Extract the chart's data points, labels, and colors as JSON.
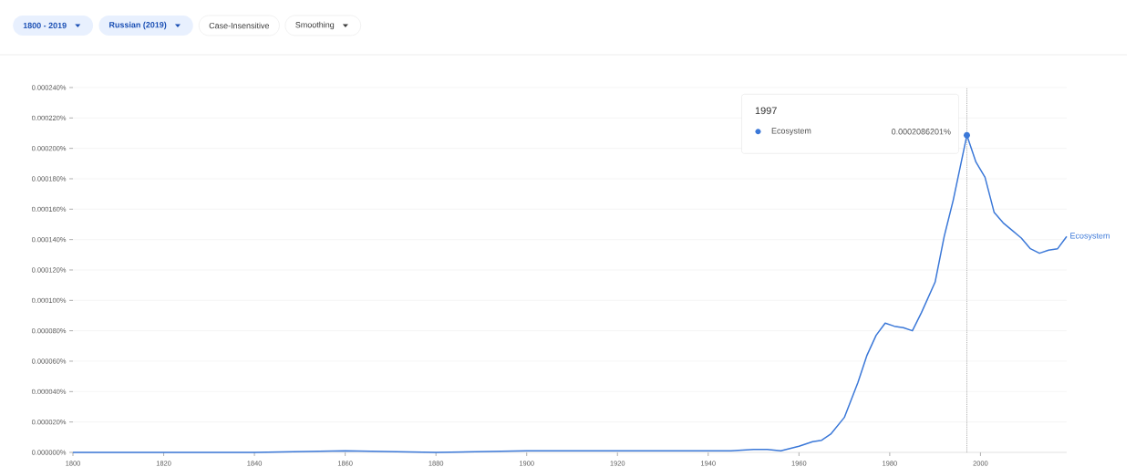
{
  "chart_data": {
    "type": "line",
    "x": [
      1800,
      1820,
      1840,
      1860,
      1880,
      1900,
      1920,
      1940,
      1945,
      1950,
      1953,
      1956,
      1960,
      1963,
      1965,
      1967,
      1970,
      1973,
      1975,
      1977,
      1979,
      1981,
      1983,
      1985,
      1987,
      1990,
      1992,
      1994,
      1997,
      1999,
      2001,
      2003,
      2005,
      2007,
      2009,
      2011,
      2013,
      2015,
      2017,
      2019
    ],
    "series": [
      {
        "name": "Ecosystem",
        "color": "#3b78d8",
        "values": [
          0,
          0,
          0,
          1e-06,
          0,
          1e-06,
          1e-06,
          1e-06,
          1e-06,
          2e-06,
          2e-06,
          1e-06,
          4e-06,
          7e-06,
          8e-06,
          1.2e-05,
          2.3e-05,
          4.6e-05,
          6.4e-05,
          7.7e-05,
          8.5e-05,
          8.3e-05,
          8.2e-05,
          8e-05,
          9.2e-05,
          0.000112,
          0.000142,
          0.000166,
          0.0002086201,
          0.000191,
          0.000181,
          0.000158,
          0.000151,
          0.000146,
          0.000141,
          0.000134,
          0.000131,
          0.000133,
          0.000134,
          0.000142
        ]
      }
    ],
    "xlim": [
      1800,
      2019
    ],
    "xticks": [
      1800,
      1820,
      1840,
      1860,
      1880,
      1900,
      1920,
      1940,
      1960,
      1980,
      2000
    ],
    "ylim": [
      0,
      0.00024
    ],
    "yticks": [
      {
        "value": 0,
        "label": "0.000000%"
      },
      {
        "value": 2e-05,
        "label": "0.000020%"
      },
      {
        "value": 4e-05,
        "label": "0.000040%"
      },
      {
        "value": 6e-05,
        "label": "0.000060%"
      },
      {
        "value": 8e-05,
        "label": "0.000080%"
      },
      {
        "value": 0.0001,
        "label": "0.000100%"
      },
      {
        "value": 0.00012,
        "label": "0.000120%"
      },
      {
        "value": 0.00014,
        "label": "0.000140%"
      },
      {
        "value": 0.00016,
        "label": "0.000160%"
      },
      {
        "value": 0.00018,
        "label": "0.000180%"
      },
      {
        "value": 0.0002,
        "label": "0.000200%"
      },
      {
        "value": 0.00022,
        "label": "0.000220%"
      },
      {
        "value": 0.00024,
        "label": "0.000240%"
      }
    ],
    "grid": "y",
    "line_style": "solid",
    "ref_lines": [
      {
        "axis": "x",
        "value": 1997,
        "color": "#888888",
        "line_style": "dotted"
      }
    ],
    "annotations": [
      "1800 - 2019",
      "Russian (2019)",
      "Case-Insensitive",
      "Smoothing",
      "1997",
      "0.0002086201%"
    ]
  }
}
